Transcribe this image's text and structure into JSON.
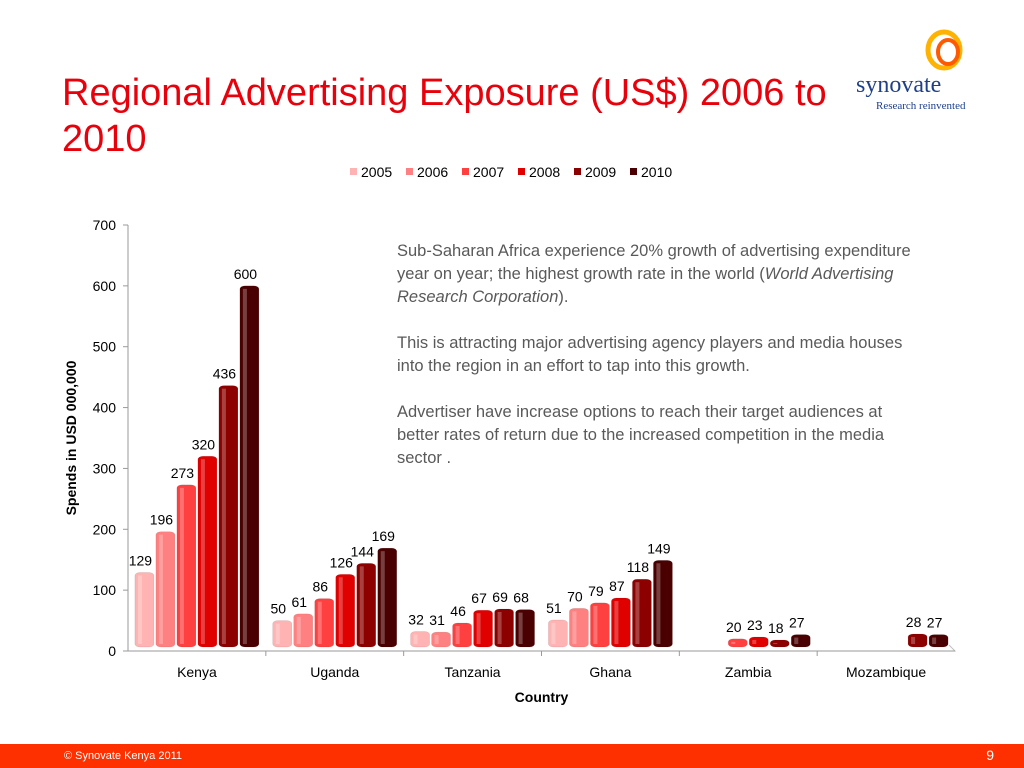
{
  "slide": {
    "title": "Regional Advertising Exposure (US$) 2006 to 2010",
    "logo_name": "synovate",
    "logo_tagline": "Research reinvented",
    "footer_left": "© Synovate Kenya 2011",
    "page_number": "9"
  },
  "note": {
    "paragraph1_a": "Sub-Saharan Africa experience 20% growth of advertising expenditure year on year; the highest growth rate in the world (",
    "paragraph1_source": "World Advertising Research Corporation",
    "paragraph1_b": ").",
    "paragraph2": "This is attracting major advertising agency players and media houses into the region in an effort to tap into this growth.",
    "paragraph3": "Advertiser have increase options to reach their target audiences at better rates of return due to the increased competition in the media sector ."
  },
  "chart_data": {
    "type": "bar",
    "title": "",
    "xlabel": "Country",
    "ylabel": "Spends in USD 000,000",
    "ylim": [
      0,
      700
    ],
    "yticks": [
      0,
      100,
      200,
      300,
      400,
      500,
      600,
      700
    ],
    "legend_position": "top",
    "grid": false,
    "categories": [
      "Kenya",
      "Uganda",
      "Tanzania",
      "Ghana",
      "Zambia",
      "Mozambique"
    ],
    "series": [
      {
        "name": "2005",
        "color": "#ffb3b3",
        "values": [
          129,
          50,
          32,
          51,
          null,
          null
        ]
      },
      {
        "name": "2006",
        "color": "#ff8080",
        "values": [
          196,
          61,
          31,
          70,
          null,
          null
        ]
      },
      {
        "name": "2007",
        "color": "#ff4040",
        "values": [
          273,
          86,
          46,
          79,
          20,
          null
        ]
      },
      {
        "name": "2008",
        "color": "#e00000",
        "values": [
          320,
          126,
          67,
          87,
          23,
          null
        ]
      },
      {
        "name": "2009",
        "color": "#8c0000",
        "values": [
          436,
          144,
          69,
          118,
          18,
          28
        ]
      },
      {
        "name": "2010",
        "color": "#4a0000",
        "values": [
          600,
          169,
          68,
          149,
          27,
          27
        ]
      }
    ]
  }
}
